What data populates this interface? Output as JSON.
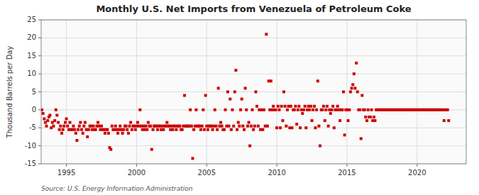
{
  "chart_data": {
    "type": "scatter",
    "title": "Monthly U.S. Net Imports from Venezuela of Petroleum Coke",
    "ylabel": "Thousand Barrels per Day",
    "source": "Source: U.S. Energy Information Administration",
    "color": "#cc0000",
    "marker": "square",
    "grid": true,
    "xlim": [
      1993.2,
      2023.5
    ],
    "ylim": [
      -15,
      25
    ],
    "xticks": [
      1995,
      2000,
      2005,
      2010,
      2015,
      2020
    ],
    "yticks": [
      -15,
      -10,
      -5,
      0,
      5,
      10,
      15,
      20,
      25
    ],
    "x": [
      1993.25,
      1993.33,
      1993.42,
      1993.5,
      1993.58,
      1993.67,
      1993.75,
      1993.83,
      1993.92,
      1994.0,
      1994.08,
      1994.17,
      1994.25,
      1994.33,
      1994.42,
      1994.5,
      1994.58,
      1994.67,
      1994.75,
      1994.83,
      1994.92,
      1995.0,
      1995.08,
      1995.17,
      1995.25,
      1995.33,
      1995.42,
      1995.5,
      1995.58,
      1995.67,
      1995.75,
      1995.83,
      1995.92,
      1996.0,
      1996.08,
      1996.17,
      1996.25,
      1996.33,
      1996.42,
      1996.5,
      1996.58,
      1996.67,
      1996.75,
      1996.83,
      1996.92,
      1997.0,
      1997.08,
      1997.17,
      1997.25,
      1997.33,
      1997.42,
      1997.5,
      1997.58,
      1997.67,
      1997.75,
      1997.83,
      1997.92,
      1998.0,
      1998.08,
      1998.17,
      1998.25,
      1998.33,
      1998.42,
      1998.5,
      1998.58,
      1998.67,
      1998.75,
      1998.83,
      1998.92,
      1999.0,
      1999.08,
      1999.17,
      1999.25,
      1999.33,
      1999.42,
      1999.5,
      1999.58,
      1999.67,
      1999.75,
      1999.83,
      1999.92,
      2000.0,
      2000.08,
      2000.17,
      2000.25,
      2000.33,
      2000.42,
      2000.5,
      2000.58,
      2000.67,
      2000.75,
      2000.83,
      2000.92,
      2001.0,
      2001.08,
      2001.17,
      2001.25,
      2001.33,
      2001.42,
      2001.5,
      2001.58,
      2001.67,
      2001.75,
      2001.83,
      2001.92,
      2002.0,
      2002.08,
      2002.17,
      2002.25,
      2002.33,
      2002.42,
      2002.5,
      2002.58,
      2002.67,
      2002.75,
      2002.83,
      2002.92,
      2003.0,
      2003.08,
      2003.17,
      2003.25,
      2003.33,
      2003.42,
      2003.5,
      2003.58,
      2003.67,
      2003.75,
      2003.83,
      2003.92,
      2004.0,
      2004.08,
      2004.17,
      2004.25,
      2004.33,
      2004.42,
      2004.5,
      2004.58,
      2004.67,
      2004.75,
      2004.83,
      2004.92,
      2005.0,
      2005.08,
      2005.17,
      2005.25,
      2005.33,
      2005.42,
      2005.5,
      2005.58,
      2005.67,
      2005.75,
      2005.83,
      2005.92,
      2006.0,
      2006.08,
      2006.17,
      2006.25,
      2006.33,
      2006.42,
      2006.5,
      2006.58,
      2006.67,
      2006.75,
      2006.83,
      2006.92,
      2007.0,
      2007.08,
      2007.17,
      2007.25,
      2007.33,
      2007.42,
      2007.5,
      2007.58,
      2007.67,
      2007.75,
      2007.83,
      2007.92,
      2008.0,
      2008.08,
      2008.17,
      2008.25,
      2008.33,
      2008.42,
      2008.5,
      2008.58,
      2008.67,
      2008.75,
      2008.83,
      2008.92,
      2009.0,
      2009.08,
      2009.17,
      2009.25,
      2009.33,
      2009.42,
      2009.5,
      2009.58,
      2009.67,
      2009.75,
      2009.83,
      2009.92,
      2010.0,
      2010.08,
      2010.17,
      2010.25,
      2010.33,
      2010.42,
      2010.5,
      2010.58,
      2010.67,
      2010.75,
      2010.83,
      2010.92,
      2011.0,
      2011.08,
      2011.17,
      2011.25,
      2011.33,
      2011.42,
      2011.5,
      2011.58,
      2011.67,
      2011.75,
      2011.83,
      2011.92,
      2012.0,
      2012.08,
      2012.17,
      2012.25,
      2012.33,
      2012.42,
      2012.5,
      2012.58,
      2012.67,
      2012.75,
      2012.83,
      2012.92,
      2013.0,
      2013.08,
      2013.17,
      2013.25,
      2013.33,
      2013.42,
      2013.5,
      2013.58,
      2013.67,
      2013.75,
      2013.83,
      2013.92,
      2014.0,
      2014.08,
      2014.17,
      2014.25,
      2014.33,
      2014.42,
      2014.5,
      2014.58,
      2014.67,
      2014.75,
      2014.83,
      2014.92,
      2015.0,
      2015.08,
      2015.17,
      2015.25,
      2015.33,
      2015.42,
      2015.5,
      2015.58,
      2015.67,
      2015.75,
      2015.83,
      2015.92,
      2016.0,
      2016.08,
      2016.17,
      2016.25,
      2016.33,
      2016.42,
      2016.5,
      2016.58,
      2016.67,
      2016.75,
      2016.83,
      2016.92,
      2017.0,
      2017.08,
      2017.17,
      2017.25,
      2017.33,
      2017.42,
      2017.5,
      2017.58,
      2017.67,
      2017.75,
      2017.83,
      2017.92,
      2018.0,
      2018.08,
      2018.17,
      2018.25,
      2018.33,
      2018.42,
      2018.5,
      2018.58,
      2018.67,
      2018.75,
      2018.83,
      2018.92,
      2019.0,
      2019.08,
      2019.17,
      2019.25,
      2019.33,
      2019.42,
      2019.5,
      2019.58,
      2019.67,
      2019.75,
      2019.83,
      2019.92,
      2020.0,
      2020.08,
      2020.17,
      2020.25,
      2020.33,
      2020.42,
      2020.5,
      2020.58,
      2020.67,
      2020.75,
      2020.83,
      2020.92,
      2021.0,
      2021.08,
      2021.17,
      2021.25,
      2021.33,
      2021.42,
      2021.5,
      2021.58,
      2021.67,
      2021.75,
      2021.83,
      2021.92,
      2022.0,
      2022.08,
      2022.17,
      2022.25
    ],
    "values": [
      0.0,
      -1.0,
      -2.5,
      -3.5,
      -4.5,
      -3.0,
      -2.0,
      -1.5,
      -5.0,
      -3.5,
      -4.5,
      -3.0,
      0.0,
      -1.5,
      -3.5,
      -5.5,
      -4.5,
      -6.5,
      -5.5,
      -4.5,
      -3.5,
      -2.5,
      -4.5,
      -5.5,
      -3.5,
      -5.5,
      -5.5,
      -4.5,
      -5.5,
      -6.5,
      -8.5,
      -5.5,
      -4.5,
      -3.5,
      -5.5,
      -6.5,
      -4.5,
      -3.5,
      -5.5,
      -7.5,
      -5.5,
      -4.5,
      -4.5,
      -5.5,
      -4.5,
      -5.5,
      -5.5,
      -4.5,
      -3.5,
      -4.5,
      -5.5,
      -4.5,
      -5.5,
      -5.5,
      -6.5,
      -5.5,
      -5.5,
      -6.5,
      -10.5,
      -11.0,
      -4.5,
      -5.5,
      -5.5,
      -4.5,
      -5.5,
      -6.5,
      -5.5,
      -4.5,
      -5.5,
      -6.5,
      -5.5,
      -4.5,
      -4.5,
      -5.5,
      -6.5,
      -4.5,
      -3.5,
      -5.5,
      -4.5,
      -4.5,
      -5.5,
      -4.5,
      -3.5,
      -4.5,
      0.0,
      -4.5,
      -5.5,
      -4.5,
      -5.5,
      -4.5,
      -5.5,
      -3.5,
      -4.5,
      -4.5,
      -11.0,
      -5.5,
      -4.5,
      -4.5,
      -4.5,
      -5.5,
      -4.5,
      -4.5,
      -5.5,
      -4.5,
      -5.5,
      -4.5,
      -4.5,
      -3.5,
      -4.5,
      -4.5,
      -5.5,
      -4.5,
      -5.5,
      -4.5,
      -4.5,
      -5.5,
      -4.5,
      -4.5,
      -4.5,
      -5.5,
      -5.5,
      -4.5,
      4.0,
      -4.5,
      -4.5,
      -4.5,
      -4.5,
      0.0,
      -4.5,
      -13.5,
      -5.5,
      -4.5,
      0.0,
      -4.5,
      -4.5,
      -4.5,
      -5.5,
      -4.5,
      0.0,
      -5.5,
      4.0,
      -4.5,
      -5.5,
      -4.5,
      -4.5,
      -4.5,
      -5.5,
      -4.5,
      0.0,
      -4.5,
      -5.5,
      6.0,
      -4.5,
      -3.5,
      -4.5,
      -5.5,
      -5.5,
      0.0,
      -4.5,
      5.0,
      -4.5,
      3.0,
      -5.5,
      0.0,
      -4.5,
      5.0,
      11.0,
      -5.5,
      -3.5,
      -4.5,
      0.0,
      3.0,
      -4.5,
      -5.5,
      6.0,
      0.0,
      -4.5,
      -3.5,
      -10.0,
      -4.5,
      0.0,
      -5.5,
      -4.5,
      5.0,
      1.0,
      -4.5,
      0.0,
      -5.5,
      0.0,
      -5.5,
      0.0,
      -4.5,
      21.0,
      -4.5,
      8.0,
      0.0,
      8.0,
      0.0,
      1.0,
      0.0,
      0.0,
      -5.0,
      1.0,
      0.0,
      -5.0,
      1.0,
      -3.0,
      5.0,
      1.0,
      -4.5,
      0.0,
      1.0,
      -5.0,
      1.0,
      -5.0,
      0.0,
      0.0,
      1.0,
      -4.0,
      0.0,
      1.0,
      -5.0,
      0.0,
      -1.0,
      0.0,
      1.0,
      -5.0,
      0.0,
      1.0,
      0.0,
      1.0,
      -3.0,
      0.0,
      1.0,
      -5.0,
      0.0,
      8.0,
      -4.5,
      -10.0,
      0.0,
      0.0,
      1.0,
      -3.0,
      0.0,
      1.0,
      -4.5,
      0.0,
      -1.0,
      0.0,
      1.0,
      -5.0,
      0.0,
      0.0,
      1.0,
      0.0,
      -3.0,
      0.0,
      0.0,
      5.0,
      -7.0,
      0.0,
      0.0,
      -3.0,
      0.0,
      5.0,
      6.0,
      7.0,
      10.0,
      6.0,
      13.0,
      5.0,
      0.0,
      0.0,
      -8.0,
      4.0,
      0.0,
      0.0,
      -2.0,
      -3.0,
      0.0,
      -2.0,
      -2.0,
      0.0,
      -3.0,
      -2.0,
      -3.0,
      0.0,
      0.0,
      0.0,
      0.0,
      0.0,
      0.0,
      0.0,
      0.0,
      0.0,
      0.0,
      0.0,
      0.0,
      0.0,
      0.0,
      0.0,
      0.0,
      0.0,
      0.0,
      0.0,
      0.0,
      0.0,
      0.0,
      0.0,
      0.0,
      0.0,
      0.0,
      0.0,
      0.0,
      0.0,
      0.0,
      0.0,
      0.0,
      0.0,
      0.0,
      0.0,
      0.0,
      0.0,
      0.0,
      0.0,
      0.0,
      0.0,
      0.0,
      0.0,
      0.0,
      0.0,
      0.0,
      0.0,
      0.0,
      0.0,
      0.0,
      0.0,
      0.0,
      0.0,
      0.0,
      0.0,
      0.0,
      0.0,
      0.0,
      -3.0,
      0.0,
      0.0,
      0.0,
      -3.0
    ]
  }
}
